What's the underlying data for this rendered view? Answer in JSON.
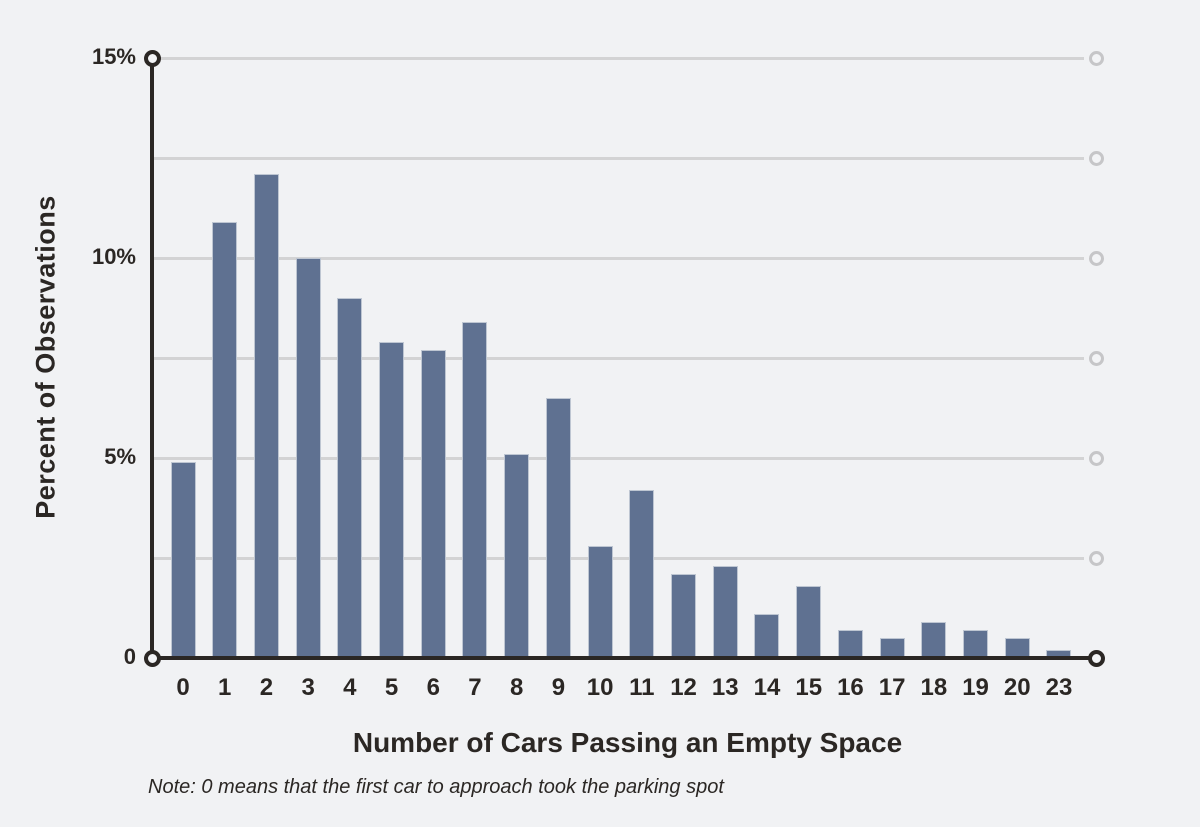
{
  "figure": {
    "background_color": "#f1f2f4",
    "text_color": "#2b2724",
    "note": "Note: 0 means that the first car to approach took the parking spot"
  },
  "chart_data": {
    "type": "bar",
    "title": "",
    "xlabel": "Number of Cars Passing an Empty Space",
    "ylabel": "Percent of Observations",
    "categories": [
      "0",
      "1",
      "2",
      "3",
      "4",
      "5",
      "6",
      "7",
      "8",
      "9",
      "10",
      "11",
      "12",
      "13",
      "14",
      "15",
      "16",
      "17",
      "18",
      "19",
      "20",
      "23"
    ],
    "values": [
      4.9,
      10.9,
      12.1,
      10.0,
      9.0,
      7.9,
      7.7,
      8.4,
      5.1,
      6.5,
      2.8,
      4.2,
      2.1,
      2.3,
      1.1,
      1.8,
      0.7,
      0.5,
      0.9,
      0.7,
      0.5,
      0.2
    ],
    "unit": "%",
    "ylim": [
      0,
      15
    ],
    "ytick_labels": [
      "15%",
      "10%",
      "5%",
      "0"
    ],
    "ytick_values": [
      15,
      10,
      5,
      0
    ],
    "gridline_values": [
      15,
      12.5,
      10,
      7.5,
      5,
      2.5
    ],
    "grid": true,
    "legend": false,
    "bar_color": "#5f7191",
    "bar_border_color": "#bec6d2",
    "axis_color": "#2b2724",
    "gridline_color": "#d3d3d4"
  }
}
